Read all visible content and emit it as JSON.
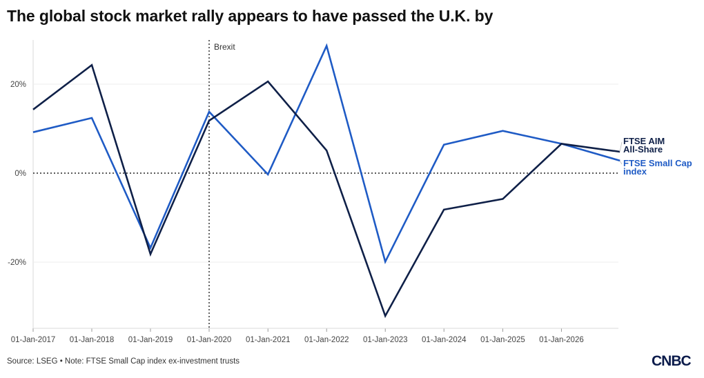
{
  "title": "The global stock market rally appears to have passed the U.K. by",
  "footer": {
    "source": "Source: LSEG • Note: FTSE Small Cap index ex-investment trusts"
  },
  "logo": {
    "text": "CNBC"
  },
  "colors": {
    "aim": "#0f2048",
    "small_cap": "#1f5bc5"
  },
  "chart_data": {
    "type": "line",
    "x": [
      "01-Jan-2017",
      "01-Jan-2018",
      "01-Jan-2019",
      "01-Jan-2020",
      "01-Jan-2021",
      "01-Jan-2022",
      "01-Jan-2023",
      "01-Jan-2024",
      "01-Jan-2025",
      "01-Jan-2026",
      "2026-12-31"
    ],
    "x_tick_labels": [
      "01-Jan-2017",
      "01-Jan-2018",
      "01-Jan-2019",
      "01-Jan-2020",
      "01-Jan-2021",
      "01-Jan-2022",
      "01-Jan-2023",
      "01-Jan-2024",
      "01-Jan-2025",
      "01-Jan-2026"
    ],
    "y_ticks": [
      {
        "value": 20,
        "label": "20%"
      },
      {
        "value": 0,
        "label": "0%"
      },
      {
        "value": -20,
        "label": "-20%"
      }
    ],
    "ylim": [
      -35,
      30
    ],
    "grid": true,
    "series": [
      {
        "name": "FTSE AIM All-Share",
        "label_lines": [
          "FTSE AIM",
          "All-Share"
        ],
        "values": [
          14.3,
          24.3,
          -18.2,
          11.8,
          20.6,
          5.1,
          -32.1,
          -8.2,
          -5.8,
          6.6,
          4.8
        ]
      },
      {
        "name": "FTSE Small Cap index",
        "label_lines": [
          "FTSE Small Cap",
          "index"
        ],
        "values": [
          9.2,
          12.4,
          -16.8,
          13.8,
          -0.3,
          28.6,
          -19.9,
          6.4,
          9.5,
          6.6,
          2.8
        ]
      }
    ],
    "annotation": {
      "x": "01-Jan-2020",
      "text": "Brexit"
    }
  }
}
